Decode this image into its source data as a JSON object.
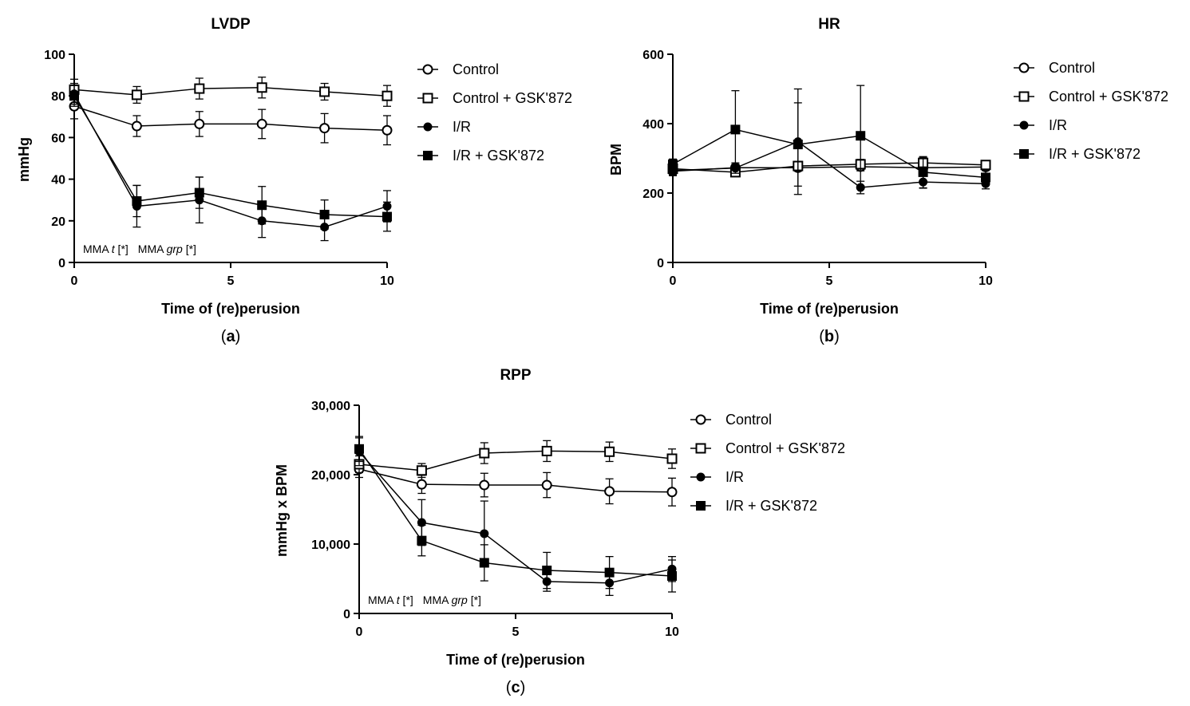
{
  "chart_data": [
    {
      "type": "line",
      "title": "LVDP",
      "xlabel": "Time of (re)perusion",
      "ylabel": "mmHg",
      "xlim": [
        0,
        10
      ],
      "ylim": [
        0,
        100
      ],
      "xticks": [
        0,
        5,
        10
      ],
      "yticks": [
        0,
        20,
        40,
        60,
        80,
        100
      ],
      "ytick_labels": [
        "0",
        "20",
        "40",
        "60",
        "80",
        "100"
      ],
      "x": [
        0,
        2,
        4,
        6,
        8,
        10
      ],
      "series": [
        {
          "name": "Control",
          "marker": "circle-open",
          "values": [
            75,
            65.5,
            66.5,
            66.5,
            64.5,
            63.5
          ],
          "errors": [
            6,
            5,
            6,
            7,
            7,
            7
          ]
        },
        {
          "name": "Control + GSK'872",
          "marker": "square-open",
          "values": [
            83,
            80.5,
            83.5,
            84,
            82,
            80
          ],
          "errors": [
            5,
            4,
            5,
            5,
            4,
            5
          ]
        },
        {
          "name": "I/R",
          "marker": "circle-filled",
          "values": [
            81,
            27,
            30,
            20,
            17,
            27
          ],
          "errors": [
            5,
            10,
            11,
            8,
            6.5,
            7.5
          ]
        },
        {
          "name": "I/R + GSK'872",
          "marker": "square-filled",
          "values": [
            80,
            29.5,
            33.5,
            27.5,
            23,
            22
          ],
          "errors": [
            5,
            7.5,
            7.5,
            9,
            7,
            7
          ]
        }
      ],
      "annotation": {
        "prefix1": "MMA ",
        "italic1": "t",
        "suffix1": " [*]",
        "prefix2": "MMA ",
        "italic2": "grp",
        "suffix2": " [*]"
      },
      "caption": {
        "open": "(",
        "letter": "a",
        "close": ")"
      }
    },
    {
      "type": "line",
      "title": "HR",
      "xlabel": "Time of (re)perusion",
      "ylabel": "BPM",
      "xlim": [
        0,
        10
      ],
      "ylim": [
        0,
        600
      ],
      "xticks": [
        0,
        5,
        10
      ],
      "yticks": [
        0,
        200,
        400,
        600
      ],
      "ytick_labels": [
        "0",
        "200",
        "400",
        "600"
      ],
      "x": [
        0,
        2,
        4,
        6,
        8,
        10
      ],
      "series": [
        {
          "name": "Control",
          "marker": "circle-open",
          "values": [
            263,
            273,
            273,
            276,
            273,
            275
          ],
          "errors": [
            12,
            10,
            10,
            12,
            10,
            10
          ]
        },
        {
          "name": "Control + GSK'872",
          "marker": "square-open",
          "values": [
            270,
            260,
            278,
            283,
            287,
            281
          ],
          "errors": [
            14,
            12,
            13,
            14,
            15,
            12
          ]
        },
        {
          "name": "I/R",
          "marker": "circle-filled",
          "values": [
            265,
            272,
            348,
            216,
            232,
            227
          ],
          "errors": [
            15,
            15,
            152,
            18,
            18,
            15
          ]
        },
        {
          "name": "I/R + GSK'872",
          "marker": "square-filled",
          "values": [
            283,
            383,
            340,
            365,
            260,
            245
          ],
          "errors": [
            15,
            112,
            120,
            145,
            45,
            20
          ]
        }
      ],
      "caption": {
        "open": "(",
        "letter": "b",
        "close": ")"
      }
    },
    {
      "type": "line",
      "title": "RPP",
      "xlabel": "Time of (re)perusion",
      "ylabel": "mmHg x BPM",
      "xlim": [
        0,
        10
      ],
      "ylim": [
        0,
        30000
      ],
      "xticks": [
        0,
        5,
        10
      ],
      "yticks": [
        0,
        10000,
        20000,
        30000
      ],
      "ytick_labels": [
        "0",
        "10,000",
        "20,000",
        "30,000"
      ],
      "x": [
        0,
        2,
        4,
        6,
        8,
        10
      ],
      "series": [
        {
          "name": "Control",
          "marker": "circle-open",
          "values": [
            20800,
            18600,
            18500,
            18500,
            17600,
            17500
          ],
          "errors": [
            1200,
            1300,
            1700,
            1800,
            1800,
            2000
          ]
        },
        {
          "name": "Control + GSK'872",
          "marker": "square-open",
          "values": [
            21500,
            20600,
            23100,
            23400,
            23300,
            22300
          ],
          "errors": [
            1200,
            1000,
            1500,
            1500,
            1400,
            1400
          ]
        },
        {
          "name": "I/R",
          "marker": "circle-filled",
          "values": [
            23300,
            13100,
            11500,
            4600,
            4400,
            6400
          ],
          "errors": [
            2000,
            3300,
            4700,
            1400,
            1800,
            1800
          ]
        },
        {
          "name": "I/R + GSK'872",
          "marker": "square-filled",
          "values": [
            23700,
            10500,
            7300,
            6200,
            5900,
            5400
          ],
          "errors": [
            1800,
            2200,
            2600,
            2600,
            2300,
            2300
          ]
        }
      ],
      "annotation": {
        "prefix1": "MMA ",
        "italic1": "t",
        "suffix1": " [*]",
        "prefix2": "MMA ",
        "italic2": "grp",
        "suffix2": " [*]"
      },
      "caption": {
        "open": "(",
        "letter": "c",
        "close": ")"
      }
    }
  ]
}
